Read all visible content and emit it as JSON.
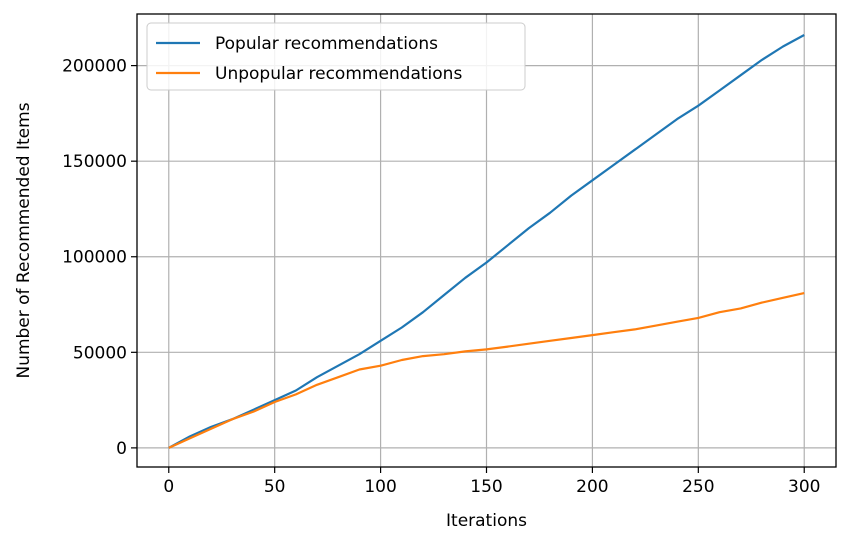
{
  "chart_data": {
    "type": "line",
    "title": "",
    "xlabel": "Iterations",
    "ylabel": "Number of Recommended Items",
    "xlim": [
      -15,
      315
    ],
    "ylim": [
      -10000,
      227000
    ],
    "xticks": [
      0,
      50,
      100,
      150,
      200,
      250,
      300
    ],
    "yticks": [
      0,
      50000,
      100000,
      150000,
      200000
    ],
    "grid": true,
    "legend_position": "upper left",
    "series": [
      {
        "name": "Popular recommendations",
        "color": "#1f77b4",
        "x": [
          0,
          10,
          20,
          30,
          40,
          50,
          60,
          70,
          80,
          90,
          100,
          110,
          120,
          130,
          140,
          150,
          160,
          170,
          180,
          190,
          200,
          210,
          220,
          230,
          240,
          250,
          260,
          270,
          280,
          290,
          300
        ],
        "values": [
          0,
          6000,
          11000,
          15000,
          20000,
          25000,
          30000,
          37000,
          43000,
          49000,
          56000,
          63000,
          71000,
          80000,
          89000,
          97000,
          106000,
          115000,
          123000,
          132000,
          140000,
          148000,
          156000,
          164000,
          172000,
          179000,
          187000,
          195000,
          203000,
          210000,
          216000
        ]
      },
      {
        "name": "Unpopular recommendations",
        "color": "#ff7f0e",
        "x": [
          0,
          10,
          20,
          30,
          40,
          50,
          60,
          70,
          80,
          90,
          100,
          110,
          120,
          130,
          140,
          150,
          160,
          170,
          180,
          190,
          200,
          210,
          220,
          230,
          240,
          250,
          260,
          270,
          280,
          290,
          300
        ],
        "values": [
          0,
          5000,
          10000,
          15000,
          19000,
          24000,
          28000,
          33000,
          37000,
          41000,
          43000,
          46000,
          48000,
          49000,
          50500,
          51500,
          53000,
          54500,
          56000,
          57500,
          59000,
          60500,
          62000,
          64000,
          66000,
          68000,
          71000,
          73000,
          76000,
          78500,
          81000
        ]
      }
    ]
  }
}
